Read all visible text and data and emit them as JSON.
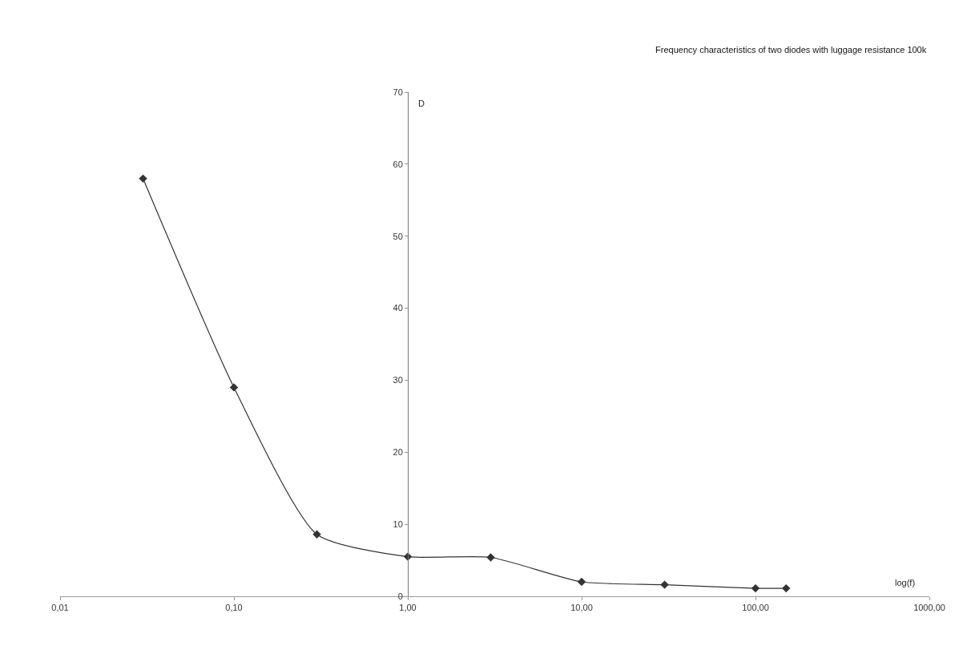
{
  "chart_data": {
    "type": "line",
    "title": "Frequency characteristics of two diodes with luggage resistance 100k",
    "xlabel": "log(f)",
    "ylabel": "D",
    "x": [
      0.03,
      0.1,
      0.3,
      1,
      3,
      10,
      30,
      100,
      150
    ],
    "series": [
      {
        "color": "#333333",
        "values": [
          58,
          29,
          8.6,
          5.5,
          5.4,
          2.0,
          1.6,
          1.1,
          1.1
        ]
      }
    ],
    "log": "x",
    "xlim": [
      0.01,
      1000
    ],
    "xticks": [
      {
        "value": 0.01,
        "label": "0,01"
      },
      {
        "value": 0.1,
        "label": "0,10"
      },
      {
        "value": 1,
        "label": "1,00"
      },
      {
        "value": 10,
        "label": "10,00"
      },
      {
        "value": 100,
        "label": "100,00"
      },
      {
        "value": 1000,
        "label": "1000,00"
      }
    ],
    "ylim": [
      0,
      70
    ],
    "yticks": [
      0,
      10,
      20,
      30,
      40,
      50,
      60,
      70
    ],
    "marker": "diamond",
    "line_style": "solid"
  }
}
